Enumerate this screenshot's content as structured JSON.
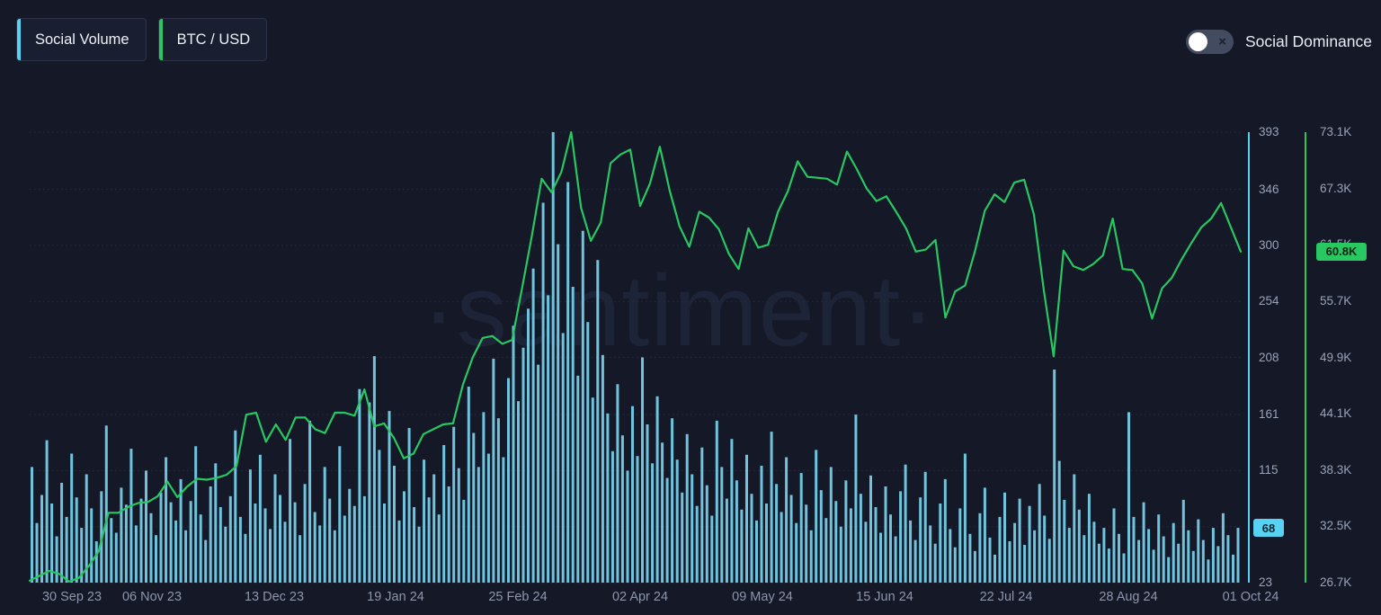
{
  "page": {
    "background": "#141827"
  },
  "legend": {
    "items": [
      {
        "label": "Social Volume",
        "accent_color": "#57d2f2"
      },
      {
        "label": "BTC / USD",
        "accent_color": "#28c762"
      }
    ]
  },
  "toggle": {
    "label": "Social Dominance",
    "state": "off",
    "off_icon": "×"
  },
  "watermark": "·santiment·",
  "chart_data": {
    "type": "bar+line",
    "title": "",
    "x_axis": {
      "tick_labels": [
        "30 Sep 23",
        "06 Nov 23",
        "13 Dec 23",
        "19 Jan 24",
        "25 Feb 24",
        "02 Apr 24",
        "09 May 24",
        "15 Jun 24",
        "22 Jul 24",
        "28 Aug 24",
        "01 Oct 24"
      ],
      "tick_day_offsets": [
        0,
        37,
        74,
        111,
        148,
        185,
        222,
        259,
        296,
        333,
        370
      ],
      "span_days": 367
    },
    "social_axis": {
      "name": "Social Volume",
      "color": "#57d2f2",
      "min": 23,
      "max": 393,
      "ticks": [
        393,
        346,
        300,
        254,
        208,
        161,
        115,
        69,
        23
      ],
      "last_value": 68,
      "last_value_label": "68"
    },
    "price_axis": {
      "name": "BTC / USD",
      "color": "#28c762",
      "min_k": 26.7,
      "max_k": 73.1,
      "ticks_k": [
        73.1,
        67.3,
        61.5,
        55.7,
        49.9,
        44.1,
        38.3,
        32.5,
        26.7
      ],
      "tick_labels": [
        "73.1K",
        "67.3K",
        "61.5K",
        "55.7K",
        "49.9K",
        "44.1K",
        "38.3K",
        "32.5K",
        "26.7K"
      ],
      "last_value_k": 60.8,
      "last_value_label": "60.8K"
    },
    "series": [
      {
        "name": "Social Volume",
        "type": "bar",
        "color": "#6fc3dd",
        "values": [
          118,
          72,
          95,
          140,
          88,
          61,
          105,
          77,
          129,
          93,
          68,
          112,
          84,
          57,
          98,
          152,
          76,
          64,
          101,
          87,
          133,
          70,
          92,
          115,
          80,
          62,
          97,
          126,
          89,
          74,
          108,
          66,
          90,
          135,
          79,
          58,
          102,
          121,
          85,
          69,
          94,
          148,
          77,
          63,
          116,
          88,
          128,
          84,
          67,
          112,
          95,
          73,
          141,
          89,
          62,
          104,
          156,
          81,
          70,
          118,
          92,
          66,
          135,
          78,
          100,
          86,
          182,
          94,
          171,
          209,
          132,
          88,
          164,
          119,
          74,
          98,
          150,
          85,
          69,
          124,
          93,
          112,
          79,
          136,
          102,
          151,
          117,
          91,
          184,
          146,
          118,
          163,
          129,
          207,
          158,
          126,
          191,
          234,
          172,
          216,
          248,
          281,
          202,
          335,
          259,
          393,
          301,
          228,
          352,
          266,
          193,
          312,
          237,
          175,
          288,
          210,
          162,
          131,
          186,
          144,
          115,
          168,
          127,
          208,
          153,
          121,
          176,
          138,
          109,
          158,
          124,
          97,
          145,
          112,
          86,
          134,
          103,
          78,
          156,
          118,
          92,
          141,
          107,
          83,
          128,
          96,
          74,
          119,
          88,
          147,
          104,
          81,
          126,
          95,
          72,
          113,
          87,
          66,
          132,
          99,
          76,
          118,
          90,
          69,
          107,
          84,
          161,
          96,
          73,
          111,
          85,
          64,
          102,
          79,
          61,
          98,
          120,
          74,
          58,
          93,
          114,
          70,
          55,
          88,
          108,
          67,
          52,
          84,
          129,
          63,
          49,
          80,
          101,
          60,
          46,
          77,
          97,
          57,
          72,
          92,
          54,
          86,
          66,
          104,
          78,
          59,
          198,
          123,
          91,
          68,
          112,
          83,
          62,
          96,
          73,
          55,
          68,
          51,
          84,
          63,
          47,
          163,
          77,
          58,
          89,
          67,
          50,
          79,
          61,
          44,
          72,
          55,
          91,
          66,
          49,
          75,
          58,
          42,
          68,
          53,
          80,
          62,
          46,
          68
        ]
      },
      {
        "name": "BTC / USD",
        "type": "line",
        "color": "#28c762",
        "values_k": [
          26.9,
          27.4,
          27.9,
          27.6,
          26.8,
          27.2,
          28.4,
          29.9,
          33.9,
          33.9,
          34.5,
          34.9,
          35.0,
          35.6,
          37.1,
          35.5,
          36.6,
          37.4,
          37.3,
          37.5,
          37.8,
          38.7,
          44.0,
          44.2,
          41.2,
          43.0,
          41.4,
          43.7,
          43.7,
          42.5,
          42.1,
          44.2,
          44.2,
          43.9,
          46.6,
          42.8,
          43.1,
          41.6,
          39.5,
          40.0,
          42.0,
          42.5,
          43.0,
          43.1,
          47.1,
          49.9,
          51.9,
          52.1,
          51.3,
          51.7,
          57.0,
          62.4,
          68.3,
          66.9,
          69.0,
          73.1,
          65.3,
          61.9,
          63.8,
          69.9,
          70.8,
          71.3,
          65.5,
          67.8,
          71.6,
          67.1,
          63.4,
          61.3,
          64.9,
          64.3,
          63.1,
          60.6,
          59.0,
          63.2,
          61.2,
          61.5,
          64.9,
          67.0,
          70.1,
          68.5,
          68.4,
          68.3,
          67.7,
          71.1,
          69.3,
          67.3,
          66.0,
          66.5,
          64.9,
          63.2,
          60.8,
          61.0,
          62.0,
          54.0,
          56.7,
          57.3,
          60.8,
          65.0,
          66.7,
          65.9,
          67.9,
          68.2,
          64.6,
          56.8,
          50.0,
          60.9,
          59.3,
          58.9,
          59.5,
          60.4,
          64.2,
          59.0,
          58.9,
          57.5,
          53.9,
          57.0,
          58.1,
          60.0,
          61.7,
          63.3,
          64.2,
          65.8,
          63.3,
          60.8
        ]
      }
    ],
    "grid": "horizontal-dotted",
    "legend_position": "top-left"
  }
}
